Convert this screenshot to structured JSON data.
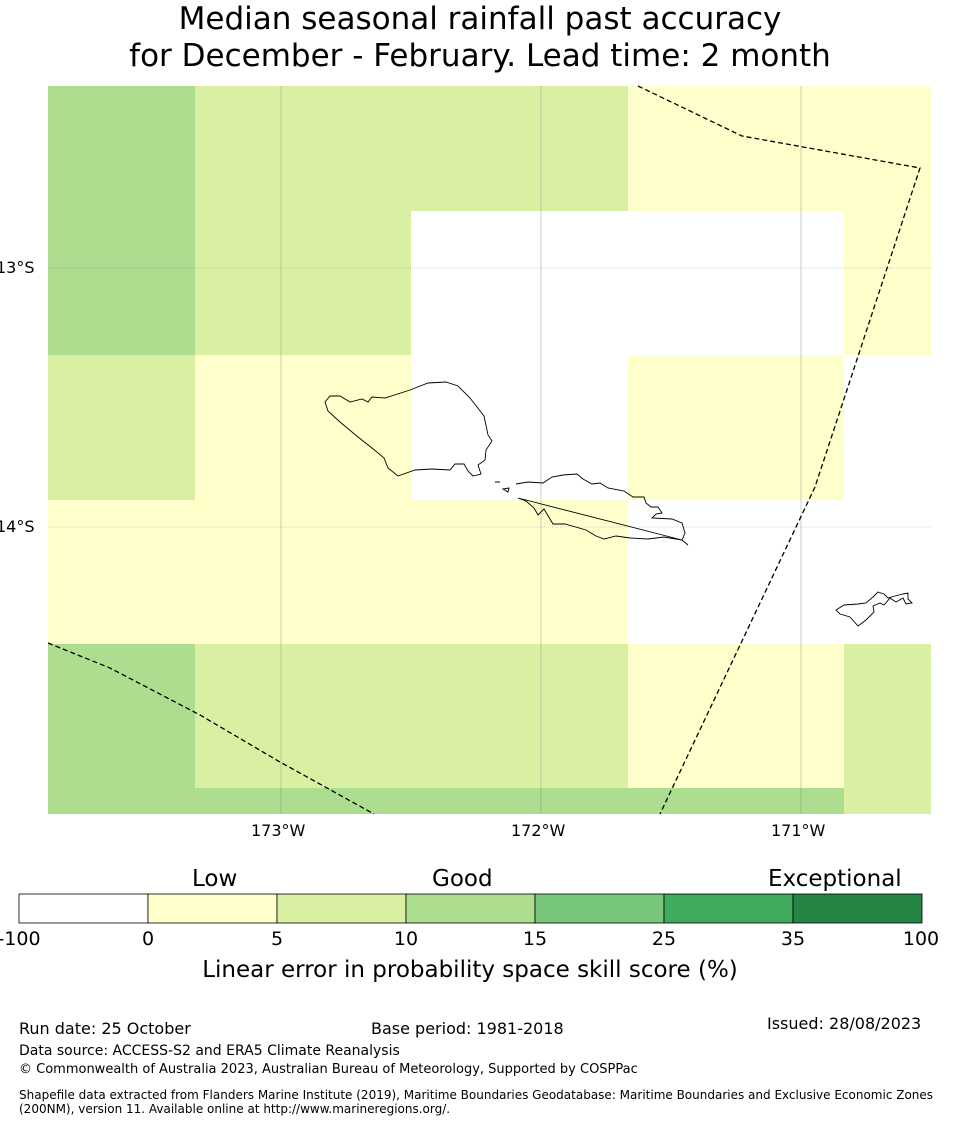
{
  "title": {
    "line1": "Median seasonal rainfall past accuracy",
    "line2": "for December - February. Lead time: 2 month"
  },
  "map": {
    "lon_labels": [
      "173°W",
      "172°W",
      "171°W"
    ],
    "lat_labels": [
      "13°S",
      "14°S"
    ],
    "features": [
      "samoa-coastline",
      "american-samoa-coastline",
      "maritime-boundary"
    ]
  },
  "colorbar": {
    "categories": [
      "Low",
      "Good",
      "Exceptional"
    ],
    "ticks": [
      "-100",
      "0",
      "5",
      "10",
      "15",
      "25",
      "35",
      "100"
    ],
    "colors": [
      "#ffffff",
      "#ffffcc",
      "#d9f0a3",
      "#addd8e",
      "#78c679",
      "#41ab5d",
      "#238443"
    ],
    "title": "Linear error in probability space skill score (%)"
  },
  "footer": {
    "run_date": "Run date: 25 October",
    "base_period": "Base period: 1981-2018",
    "issued": "Issued: 28/08/2023",
    "data_source": "Data source: ACCESS-S2 and ERA5 Climate Reanalysis",
    "copyright": "© Commonwealth of Australia 2023, Australian Bureau of Meteorology, Supported by COSPPac",
    "shapefile_line1": "Shapefile data extracted from Flanders Marine Institute (2019), Maritime Boundaries Geodatabase: Maritime Boundaries and Exclusive Economic Zones",
    "shapefile_line2": "(200NM), version 11. Available online at http://www.marineregions.org/."
  }
}
